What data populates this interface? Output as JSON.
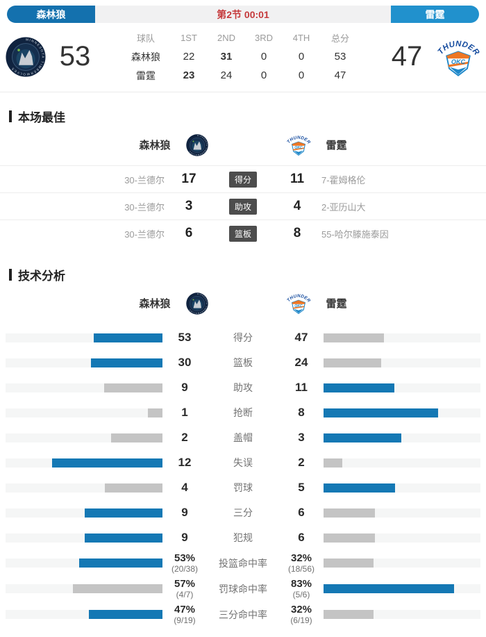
{
  "header": {
    "home_team": "森林狼",
    "away_team": "雷霆",
    "period_clock": "第2节 00:01"
  },
  "scoreboard": {
    "home_score": "53",
    "away_score": "47",
    "table": {
      "headers": [
        "球队",
        "1ST",
        "2ND",
        "3RD",
        "4TH",
        "总分"
      ],
      "rows": [
        {
          "team": "森林狼",
          "scores": [
            "22",
            "31",
            "0",
            "0",
            "53"
          ],
          "bold": [
            false,
            true,
            false,
            false,
            false
          ]
        },
        {
          "team": "雷霆",
          "scores": [
            "23",
            "24",
            "0",
            "0",
            "47"
          ],
          "bold": [
            true,
            false,
            false,
            false,
            false
          ]
        }
      ]
    }
  },
  "icons": {
    "home_logo": "timberwolves-logo",
    "away_logo": "thunder-logo"
  },
  "best_section": {
    "title": "本场最佳",
    "home_label": "森林狼",
    "away_label": "雷霆",
    "rows": [
      {
        "home_player": "30-兰德尔",
        "home_value": "17",
        "stat": "得分",
        "away_value": "11",
        "away_player": "7-霍姆格伦"
      },
      {
        "home_player": "30-兰德尔",
        "home_value": "3",
        "stat": "助攻",
        "away_value": "4",
        "away_player": "2-亚历山大"
      },
      {
        "home_player": "30-兰德尔",
        "home_value": "6",
        "stat": "篮板",
        "away_value": "8",
        "away_player": "55-哈尔滕施泰因"
      }
    ]
  },
  "analysis_section": {
    "title": "技术分析",
    "home_label": "森林狼",
    "away_label": "雷霆",
    "rows": [
      {
        "label": "得分",
        "type": "count",
        "home": 53,
        "away": 47
      },
      {
        "label": "篮板",
        "type": "count",
        "home": 30,
        "away": 24
      },
      {
        "label": "助攻",
        "type": "count",
        "home": 9,
        "away": 11
      },
      {
        "label": "抢断",
        "type": "count",
        "home": 1,
        "away": 8
      },
      {
        "label": "盖帽",
        "type": "count",
        "home": 2,
        "away": 3
      },
      {
        "label": "失误",
        "type": "count",
        "home": 12,
        "away": 2
      },
      {
        "label": "罚球",
        "type": "count",
        "home": 4,
        "away": 5
      },
      {
        "label": "三分",
        "type": "count",
        "home": 9,
        "away": 6
      },
      {
        "label": "犯规",
        "type": "count",
        "home": 9,
        "away": 6
      },
      {
        "label": "投篮命中率",
        "type": "pct",
        "home": 53,
        "away": 32,
        "home_text": "53%",
        "away_text": "32%",
        "home_sub": "(20/38)",
        "away_sub": "(18/56)"
      },
      {
        "label": "罚球命中率",
        "type": "pct",
        "home": 57,
        "away": 83,
        "home_text": "57%",
        "away_text": "83%",
        "home_sub": "(4/7)",
        "away_sub": "(5/6)"
      },
      {
        "label": "三分命中率",
        "type": "pct",
        "home": 47,
        "away": 32,
        "home_text": "47%",
        "away_text": "32%",
        "home_sub": "(9/19)",
        "away_sub": "(6/19)"
      }
    ]
  },
  "colors": {
    "bar_win": "#1478b4",
    "bar_lose": "#c4c4c4",
    "accent_red": "#c5393b",
    "home_button_blue": "#1471ae",
    "away_button_blue": "#2191cd"
  }
}
